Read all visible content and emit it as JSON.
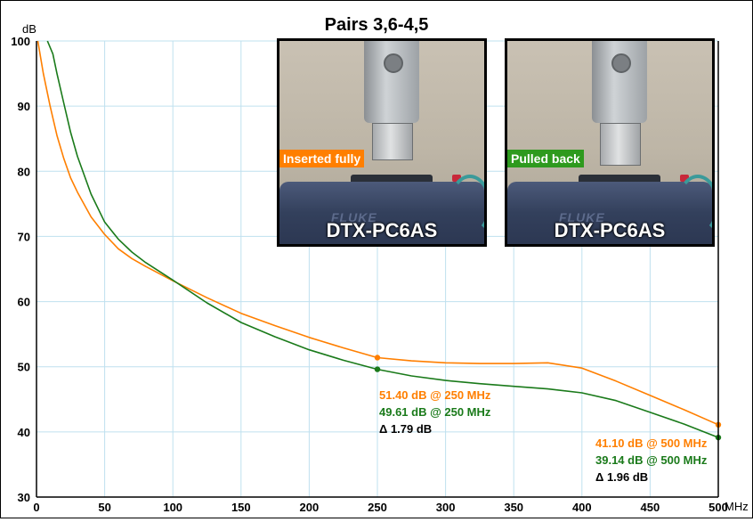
{
  "chart_data": {
    "type": "line",
    "title": "Pairs 3,6-4,5",
    "ylabel": "dB",
    "xunit": "MHz",
    "xlim": [
      0,
      500
    ],
    "ylim": [
      30,
      100
    ],
    "x_ticks": [
      0,
      50,
      100,
      150,
      200,
      250,
      300,
      350,
      400,
      450,
      500
    ],
    "y_ticks": [
      30,
      40,
      50,
      60,
      70,
      80,
      90,
      100
    ],
    "grid": true,
    "series": [
      {
        "name": "Inserted fully",
        "color": "#ff7f00",
        "points": [
          [
            1,
            100
          ],
          [
            5,
            95
          ],
          [
            10,
            90
          ],
          [
            15,
            85.5
          ],
          [
            20,
            82
          ],
          [
            25,
            79
          ],
          [
            30,
            76.8
          ],
          [
            40,
            73
          ],
          [
            50,
            70.3
          ],
          [
            60,
            68.1
          ],
          [
            70,
            66.6
          ],
          [
            80,
            65.4
          ],
          [
            100,
            63.2
          ],
          [
            125,
            60.6
          ],
          [
            150,
            58.2
          ],
          [
            175,
            56.3
          ],
          [
            200,
            54.5
          ],
          [
            225,
            52.9
          ],
          [
            250,
            51.4
          ],
          [
            275,
            50.9
          ],
          [
            300,
            50.6
          ],
          [
            325,
            50.5
          ],
          [
            350,
            50.5
          ],
          [
            375,
            50.6
          ],
          [
            400,
            49.8
          ],
          [
            425,
            47.8
          ],
          [
            450,
            45.6
          ],
          [
            475,
            43.4
          ],
          [
            500,
            41.1
          ]
        ]
      },
      {
        "name": "Pulled back",
        "color": "#1a7a1a",
        "points": [
          [
            8,
            100
          ],
          [
            12,
            98
          ],
          [
            15,
            95
          ],
          [
            20,
            90.5
          ],
          [
            25,
            86
          ],
          [
            30,
            82.3
          ],
          [
            40,
            76.5
          ],
          [
            50,
            72.2
          ],
          [
            60,
            69.6
          ],
          [
            70,
            67.6
          ],
          [
            80,
            66
          ],
          [
            100,
            63.3
          ],
          [
            125,
            59.8
          ],
          [
            150,
            56.8
          ],
          [
            175,
            54.6
          ],
          [
            200,
            52.6
          ],
          [
            225,
            51
          ],
          [
            250,
            49.61
          ],
          [
            275,
            48.6
          ],
          [
            300,
            47.9
          ],
          [
            325,
            47.4
          ],
          [
            350,
            47
          ],
          [
            375,
            46.6
          ],
          [
            400,
            46
          ],
          [
            425,
            44.8
          ],
          [
            450,
            43
          ],
          [
            475,
            41.2
          ],
          [
            500,
            39.14
          ]
        ]
      }
    ],
    "markers": [
      {
        "series": 0,
        "x": 250,
        "y": 51.4
      },
      {
        "series": 1,
        "x": 250,
        "y": 49.61
      },
      {
        "series": 0,
        "x": 500,
        "y": 41.1
      },
      {
        "series": 1,
        "x": 500,
        "y": 39.14
      }
    ],
    "annotations": [
      {
        "group": "250",
        "lines": [
          {
            "text": "51.40 dB @ 250 MHz",
            "color": "#ff7f00"
          },
          {
            "text": "49.61 dB @ 250 MHz",
            "color": "#1a7a1a"
          },
          {
            "text": "Δ 1.79 dB",
            "color": "#000000"
          }
        ]
      },
      {
        "group": "500",
        "lines": [
          {
            "text": "41.10 dB @ 500 MHz",
            "color": "#ff7f00"
          },
          {
            "text": "39.14 dB @ 500 MHz",
            "color": "#1a7a1a"
          },
          {
            "text": "Δ 1.96 dB",
            "color": "#000000"
          }
        ]
      }
    ]
  },
  "photos": [
    {
      "label": "Inserted fully",
      "label_color": "#ff7f00",
      "caption": "DTX-PC6AS",
      "brand": "FLUKE"
    },
    {
      "label": "Pulled back",
      "label_color": "#2e9a1e",
      "caption": "DTX-PC6AS",
      "brand": "FLUKE"
    }
  ]
}
